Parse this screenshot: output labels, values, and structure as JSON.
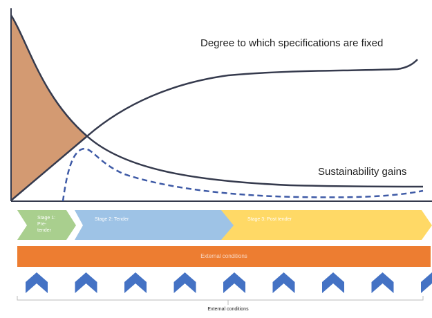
{
  "curves": {
    "specifications_label": "Degree to which specifications are fixed",
    "sustainability_label": "Sustainability gains"
  },
  "stages": [
    {
      "label": "Stage 1: Pre-tender",
      "color": "#a9cf8e"
    },
    {
      "label": "Stage 2: Tender",
      "color": "#9ec3e6"
    },
    {
      "label": "Stage 3: Post tender",
      "color": "#ffd966"
    }
  ],
  "external_bar": {
    "label": "External conditions",
    "color": "#ed7d31"
  },
  "chevrons": {
    "count": 9,
    "icon": "up-chevron-icon",
    "color": "#4472c4"
  },
  "footer": {
    "label": "External conditions"
  },
  "colors": {
    "line": "#353a4d",
    "shaded_area": "#d39a72"
  }
}
